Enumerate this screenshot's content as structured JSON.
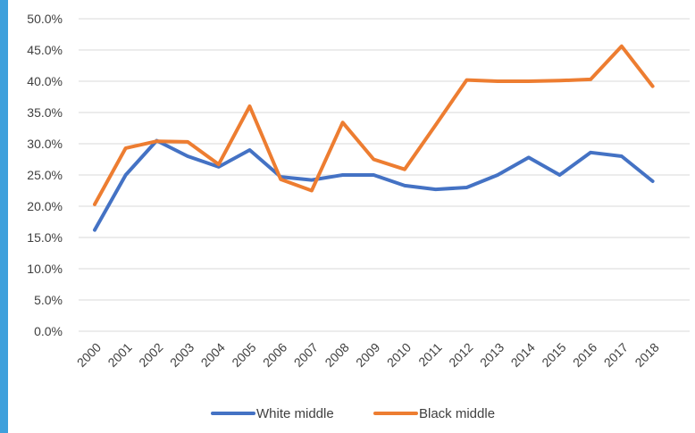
{
  "chart_data": {
    "type": "line",
    "x": [
      "2000",
      "2001",
      "2002",
      "2003",
      "2004",
      "2005",
      "2006",
      "2007",
      "2008",
      "2009",
      "2010",
      "2011",
      "2012",
      "2013",
      "2014",
      "2015",
      "2016",
      "2017",
      "2018"
    ],
    "series": [
      {
        "name": "White middle",
        "color": "#4472c4",
        "values": [
          16.2,
          25.0,
          30.5,
          28.0,
          26.3,
          29.0,
          24.7,
          24.2,
          25.0,
          25.0,
          23.3,
          22.7,
          23.0,
          25.0,
          27.8,
          25.0,
          28.6,
          28.0,
          24.0
        ]
      },
      {
        "name": "Black middle",
        "color": "#ed7d31",
        "values": [
          20.3,
          29.3,
          30.4,
          30.3,
          26.7,
          36.0,
          24.3,
          22.5,
          33.4,
          27.5,
          25.9,
          33.0,
          40.2,
          40.0,
          40.0,
          40.1,
          40.3,
          45.6,
          39.2
        ]
      }
    ],
    "yticks": [
      "0.0%",
      "5.0%",
      "10.0%",
      "15.0%",
      "20.0%",
      "25.0%",
      "30.0%",
      "35.0%",
      "40.0%",
      "45.0%",
      "50.0%"
    ],
    "ylim": [
      0,
      50
    ],
    "grid": true,
    "legend_position": "bottom",
    "title": "",
    "xlabel": "",
    "ylabel": ""
  }
}
